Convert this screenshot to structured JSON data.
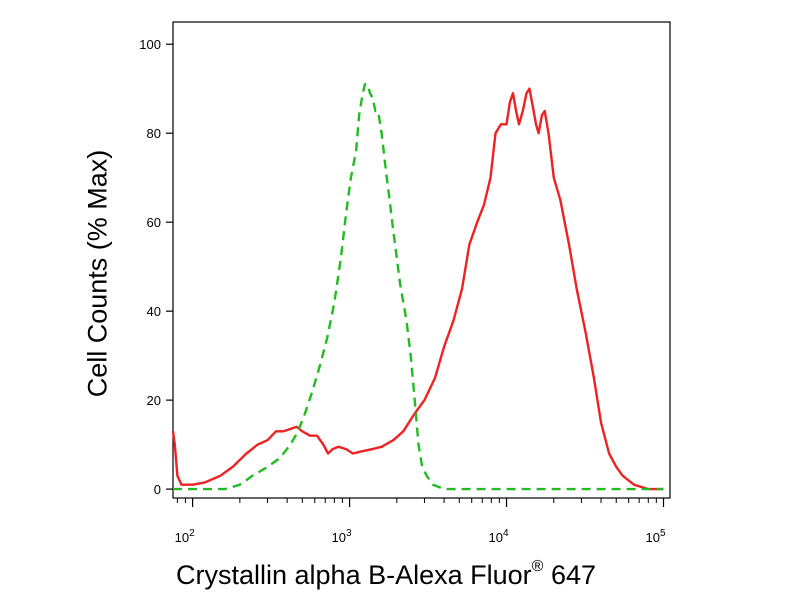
{
  "chart_data": {
    "type": "line",
    "title": "",
    "xlabel_main": "Crystallin alpha B-Alexa Fluor",
    "xlabel_sup": "®",
    "xlabel_tail": " 647",
    "ylabel": "Cell Counts (% Max)",
    "x_scale": "log",
    "xlim": [
      75,
      110000
    ],
    "ylim": [
      -2,
      105
    ],
    "grid": false,
    "x_ticks": [
      {
        "value": 100,
        "base": "10",
        "exp": "2"
      },
      {
        "value": 1000,
        "base": "10",
        "exp": "3"
      },
      {
        "value": 10000,
        "base": "10",
        "exp": "4"
      },
      {
        "value": 100000,
        "base": "10",
        "exp": "5"
      }
    ],
    "y_ticks": [
      0,
      20,
      40,
      60,
      80,
      100
    ],
    "series": [
      {
        "color": "#ee2222",
        "dash": "solid",
        "points": [
          [
            75,
            13
          ],
          [
            77,
            10
          ],
          [
            80,
            3
          ],
          [
            85,
            1
          ],
          [
            100,
            1
          ],
          [
            120,
            1.5
          ],
          [
            150,
            3
          ],
          [
            180,
            5
          ],
          [
            220,
            8
          ],
          [
            260,
            10
          ],
          [
            300,
            11
          ],
          [
            340,
            13
          ],
          [
            380,
            13
          ],
          [
            420,
            13.5
          ],
          [
            460,
            14
          ],
          [
            500,
            13
          ],
          [
            560,
            12
          ],
          [
            620,
            12
          ],
          [
            680,
            10
          ],
          [
            730,
            8
          ],
          [
            780,
            9
          ],
          [
            850,
            9.5
          ],
          [
            950,
            9
          ],
          [
            1050,
            8
          ],
          [
            1200,
            8.5
          ],
          [
            1400,
            9
          ],
          [
            1600,
            9.5
          ],
          [
            1900,
            11
          ],
          [
            2200,
            13
          ],
          [
            2600,
            17
          ],
          [
            3000,
            20
          ],
          [
            3500,
            25
          ],
          [
            4000,
            32
          ],
          [
            4600,
            38
          ],
          [
            5200,
            45
          ],
          [
            5800,
            55
          ],
          [
            6500,
            60
          ],
          [
            7200,
            64
          ],
          [
            7900,
            70
          ],
          [
            8500,
            80
          ],
          [
            9200,
            82
          ],
          [
            10000,
            82
          ],
          [
            10500,
            87
          ],
          [
            11000,
            89
          ],
          [
            11500,
            85
          ],
          [
            12000,
            82
          ],
          [
            12700,
            85
          ],
          [
            13400,
            89
          ],
          [
            14000,
            90
          ],
          [
            14700,
            86
          ],
          [
            15400,
            82
          ],
          [
            16000,
            80
          ],
          [
            16800,
            84
          ],
          [
            17500,
            85
          ],
          [
            18500,
            80
          ],
          [
            20000,
            70
          ],
          [
            22000,
            65
          ],
          [
            25000,
            55
          ],
          [
            28000,
            45
          ],
          [
            32000,
            35
          ],
          [
            36000,
            25
          ],
          [
            40000,
            15
          ],
          [
            45000,
            8
          ],
          [
            50000,
            5
          ],
          [
            55000,
            3
          ],
          [
            65000,
            1
          ],
          [
            80000,
            0
          ],
          [
            100000,
            0
          ]
        ]
      },
      {
        "color": "#22bb22",
        "dash": "dashed",
        "points": [
          [
            75,
            0
          ],
          [
            130,
            0
          ],
          [
            160,
            0
          ],
          [
            180,
            0.5
          ],
          [
            200,
            1
          ],
          [
            240,
            3
          ],
          [
            300,
            5
          ],
          [
            360,
            7
          ],
          [
            420,
            10
          ],
          [
            470,
            13
          ],
          [
            520,
            17
          ],
          [
            580,
            22
          ],
          [
            650,
            28
          ],
          [
            720,
            34
          ],
          [
            800,
            42
          ],
          [
            880,
            52
          ],
          [
            950,
            62
          ],
          [
            1020,
            70
          ],
          [
            1100,
            76
          ],
          [
            1150,
            84
          ],
          [
            1200,
            88
          ],
          [
            1250,
            91
          ],
          [
            1300,
            91
          ],
          [
            1350,
            89
          ],
          [
            1400,
            88
          ],
          [
            1460,
            85
          ],
          [
            1520,
            85
          ],
          [
            1600,
            80
          ],
          [
            1700,
            72
          ],
          [
            1800,
            65
          ],
          [
            1900,
            58
          ],
          [
            2000,
            52
          ],
          [
            2100,
            46
          ],
          [
            2200,
            42
          ],
          [
            2300,
            38
          ],
          [
            2450,
            30
          ],
          [
            2600,
            20
          ],
          [
            2750,
            10
          ],
          [
            2900,
            5
          ],
          [
            3100,
            3
          ],
          [
            3400,
            1
          ],
          [
            4000,
            0
          ],
          [
            7000,
            0
          ],
          [
            100000,
            0
          ]
        ]
      }
    ]
  }
}
